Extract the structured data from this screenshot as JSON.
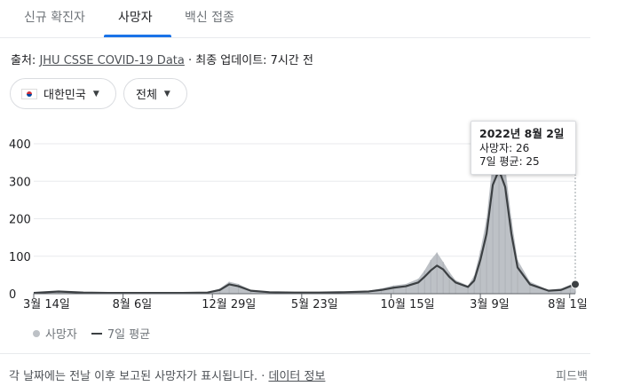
{
  "tabs": [
    {
      "label": "신규 확진자",
      "active": false
    },
    {
      "label": "사망자",
      "active": true
    },
    {
      "label": "백신 접종",
      "active": false
    }
  ],
  "source": {
    "prefix": "출처: ",
    "link": "JHU CSSE COVID-19 Data",
    "suffix": " · 최종 업데이트: 7시간 전"
  },
  "filters": {
    "region": "대한민국",
    "region_flag": "kr-flag-icon",
    "scope": "전체"
  },
  "tooltip": {
    "date": "2022년 8월 2일",
    "deaths_line": "사망자: 26",
    "avg_line": "7일 평균: 25"
  },
  "legend": {
    "deaths": "사망자",
    "avg": "7일 평균"
  },
  "footer": {
    "note": "각 날짜에는 전날 이후 보고된 사망자가 표시됩니다. · ",
    "link": "데이터 정보",
    "feedback": "피드백"
  },
  "colors": {
    "accent": "#1a73e8",
    "bars": "#bdc1c6",
    "avg_line": "#3c4043"
  },
  "chart_data": {
    "type": "area",
    "title": "",
    "xlabel": "",
    "ylabel": "",
    "ylim": [
      0,
      400
    ],
    "yticks": [
      0,
      100,
      200,
      300,
      400
    ],
    "grid": true,
    "legend_position": "bottom-left",
    "x_tick_labels": [
      "3월 14일",
      "8월 6일",
      "12월 29일",
      "5월 23일",
      "10월 15일",
      "3월 9일",
      "8월 1일"
    ],
    "x_tick_positions": [
      0,
      144,
      288,
      432,
      576,
      720,
      864
    ],
    "x_max": 873,
    "series": [
      {
        "name": "7일 평균",
        "x": [
          0,
          40,
          80,
          120,
          160,
          200,
          240,
          280,
          300,
          315,
          330,
          350,
          380,
          420,
          460,
          500,
          540,
          560,
          580,
          600,
          620,
          630,
          640,
          650,
          660,
          670,
          680,
          700,
          710,
          720,
          730,
          740,
          750,
          760,
          770,
          780,
          800,
          830,
          850,
          865,
          873
        ],
        "values": [
          2,
          6,
          3,
          2,
          2,
          2,
          2,
          3,
          10,
          25,
          20,
          8,
          4,
          3,
          3,
          4,
          6,
          10,
          16,
          20,
          30,
          45,
          62,
          75,
          65,
          45,
          30,
          18,
          35,
          90,
          160,
          290,
          330,
          285,
          160,
          70,
          25,
          8,
          10,
          20,
          25
        ]
      },
      {
        "name": "사망자",
        "x": [
          0,
          40,
          80,
          120,
          160,
          200,
          240,
          280,
          300,
          315,
          330,
          350,
          380,
          420,
          460,
          500,
          540,
          560,
          580,
          600,
          620,
          630,
          640,
          650,
          660,
          670,
          680,
          700,
          710,
          720,
          730,
          740,
          750,
          760,
          770,
          780,
          800,
          830,
          850,
          865,
          873
        ],
        "values": [
          2,
          7,
          3,
          2,
          2,
          2,
          2,
          4,
          14,
          32,
          26,
          10,
          5,
          4,
          4,
          5,
          8,
          14,
          22,
          26,
          40,
          62,
          90,
          110,
          85,
          58,
          36,
          22,
          48,
          115,
          200,
          355,
          390,
          340,
          200,
          90,
          32,
          10,
          14,
          24,
          26
        ]
      }
    ],
    "highlight": {
      "x": 873,
      "date": "2022년 8월 2일",
      "deaths": 26,
      "avg": 25
    }
  }
}
